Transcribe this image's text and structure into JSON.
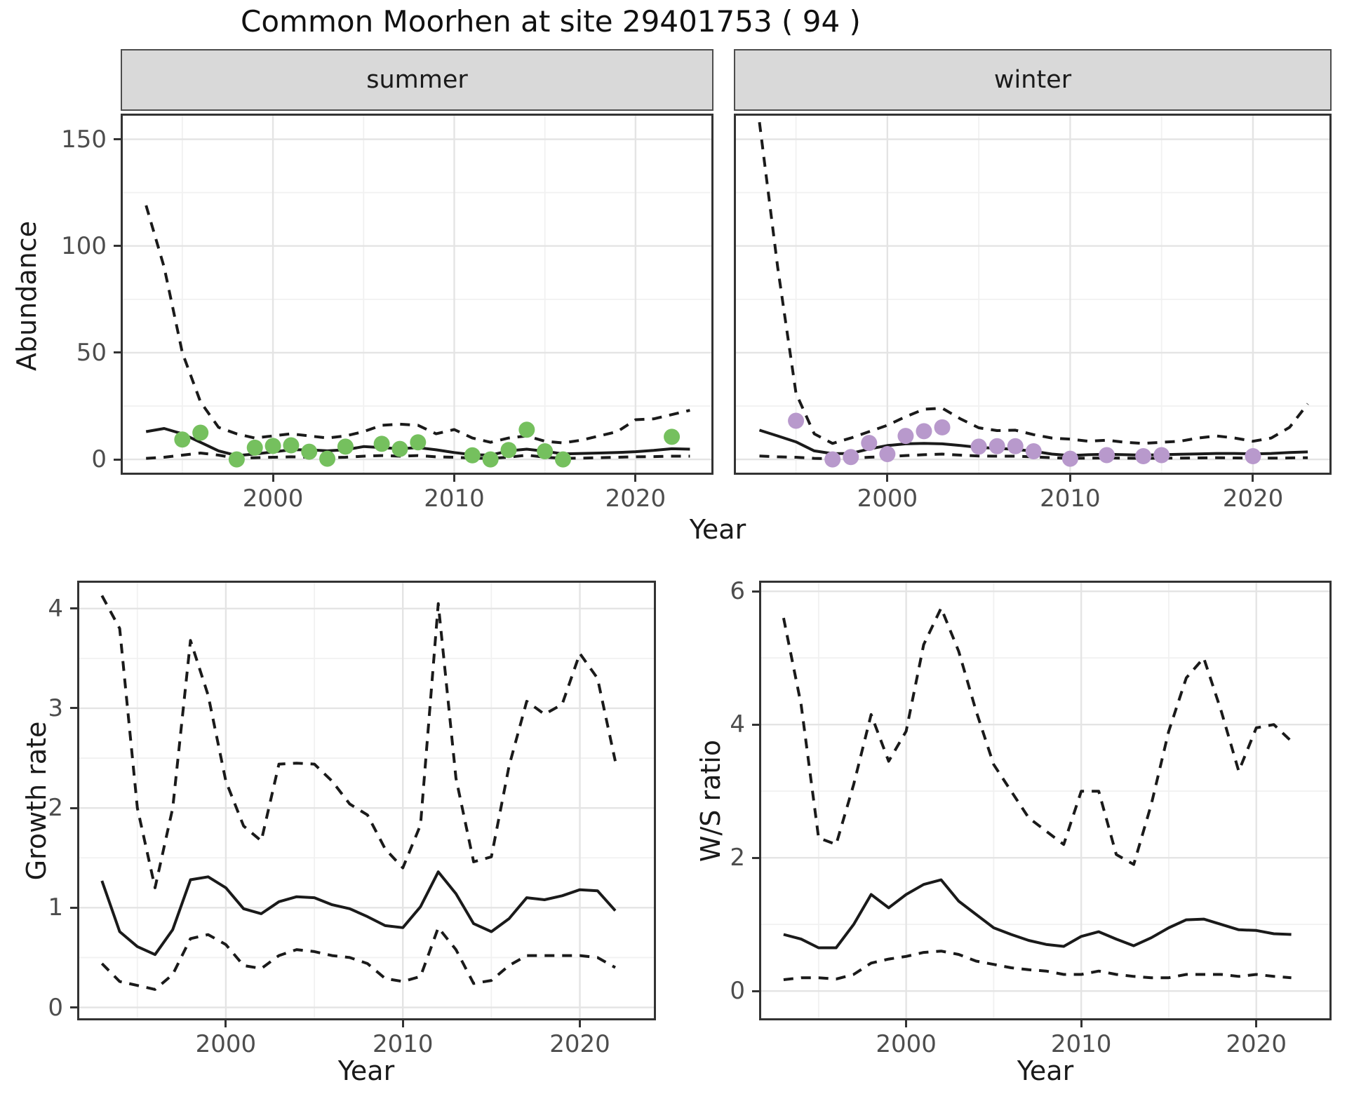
{
  "title": "Common Moorhen at site 29401753 ( 94 )",
  "top_row": {
    "ylabel": "Abundance",
    "xlabel": "Year",
    "facets": [
      "summer",
      "winter"
    ]
  },
  "bottom_row": {
    "panels": [
      {
        "ylabel": "Growth rate",
        "xlabel": "Year"
      },
      {
        "ylabel": "W/S ratio",
        "xlabel": "Year"
      }
    ]
  },
  "colors": {
    "summer_point": "#75c05e",
    "winter_point": "#b899cc",
    "line": "#1a1a1a",
    "panel_border": "#333333",
    "grid_major": "#e4e4e4",
    "grid_minor": "#f1f1f1",
    "strip_bg": "#d9d9d9",
    "tick_text": "#4d4d4d"
  },
  "chart_data": [
    {
      "type": "line",
      "facet": "summer",
      "xlabel": "Year",
      "ylabel": "Abundance",
      "xlim": [
        1991.6,
        2024.3
      ],
      "ylim": [
        -7.2,
        162
      ],
      "x_major": [
        2000,
        2010,
        2020
      ],
      "x_minor": [
        1995,
        2005,
        2015
      ],
      "x_tick_labels": [
        "2000",
        "2010",
        "2020"
      ],
      "y_major": [
        0,
        50,
        100,
        150
      ],
      "y_minor": [
        25,
        75,
        125
      ],
      "y_tick_labels": [
        "0",
        "50",
        "100",
        "150"
      ],
      "years": [
        1993,
        1994,
        1995,
        1996,
        1997,
        1998,
        1999,
        2000,
        2001,
        2002,
        2003,
        2004,
        2005,
        2006,
        2007,
        2008,
        2009,
        2010,
        2011,
        2012,
        2013,
        2014,
        2015,
        2016,
        2017,
        2018,
        2019,
        2020,
        2021,
        2022,
        2023
      ],
      "series": [
        {
          "name": "upper_ci",
          "style": "dashed",
          "values": [
            119,
            90,
            50,
            27,
            15,
            12,
            10,
            11,
            12,
            11,
            10,
            11,
            13,
            16,
            16.5,
            16,
            12,
            14,
            10,
            8,
            10,
            11,
            8.5,
            7.7,
            9,
            11,
            13,
            18.6,
            19,
            21,
            23
          ]
        },
        {
          "name": "median",
          "style": "solid",
          "values": [
            13,
            14.5,
            12,
            8,
            4,
            1.8,
            2.5,
            3.5,
            4.5,
            4.5,
            4,
            4.5,
            6,
            5.5,
            5,
            5.5,
            4.5,
            3.2,
            2.2,
            2,
            4,
            4.8,
            3.8,
            2.6,
            2.8,
            3,
            3.2,
            3.6,
            4.2,
            5,
            4.8
          ]
        },
        {
          "name": "lower_ci",
          "style": "dashed",
          "values": [
            0.5,
            1,
            2,
            3,
            2,
            0.5,
            0.8,
            1,
            1.2,
            1,
            0.8,
            1,
            1.5,
            1.8,
            1.5,
            1.8,
            1.2,
            1,
            0.6,
            0.5,
            1,
            2,
            1,
            0.5,
            0.6,
            0.8,
            1,
            1.2,
            1.3,
            1.5,
            1.5
          ]
        }
      ],
      "points": {
        "name": "observed-counts",
        "color": "#75c05e",
        "x": [
          1995,
          1996,
          1998,
          1999,
          2000,
          2001,
          2002,
          2003,
          2004,
          2006,
          2007,
          2008,
          2011,
          2012,
          2013,
          2014,
          2015,
          2016,
          2022
        ],
        "y": [
          9.3,
          12.5,
          0,
          5.5,
          6.3,
          6.6,
          3.6,
          0.3,
          6,
          7.3,
          4.9,
          8,
          1.9,
          0,
          4.4,
          13.9,
          3.8,
          0,
          10.6
        ]
      }
    },
    {
      "type": "line",
      "facet": "winter",
      "xlabel": "Year",
      "ylabel": "Abundance",
      "xlim": [
        1991.6,
        2024.3
      ],
      "ylim": [
        -7.2,
        162
      ],
      "x_major": [
        2000,
        2010,
        2020
      ],
      "x_minor": [
        1995,
        2005,
        2015
      ],
      "x_tick_labels": [
        "2000",
        "2010",
        "2020"
      ],
      "y_major": [
        0,
        50,
        100,
        150
      ],
      "y_minor": [
        25,
        75,
        125
      ],
      "y_tick_labels": null,
      "years": [
        1993,
        1994,
        1995,
        1996,
        1997,
        1998,
        1999,
        2000,
        2001,
        2002,
        2003,
        2004,
        2005,
        2006,
        2007,
        2008,
        2009,
        2010,
        2011,
        2012,
        2013,
        2014,
        2015,
        2016,
        2017,
        2018,
        2019,
        2020,
        2021,
        2022,
        2023
      ],
      "series": [
        {
          "name": "upper_ci",
          "style": "dashed",
          "values": [
            158,
            90,
            31,
            12,
            7.5,
            10,
            13,
            16,
            20,
            23.5,
            24,
            19,
            14.8,
            13.5,
            13.7,
            11.6,
            10,
            9.5,
            8.5,
            9,
            8,
            7.5,
            8,
            8.5,
            10,
            11,
            10,
            8.5,
            10,
            15,
            26
          ]
        },
        {
          "name": "median",
          "style": "solid",
          "values": [
            13.7,
            11,
            8.2,
            4,
            2.7,
            2.8,
            4.9,
            6.5,
            7.3,
            7.5,
            7.3,
            6.5,
            5.6,
            5.2,
            4.7,
            3.8,
            2.5,
            1.8,
            2.2,
            2.4,
            2.2,
            2,
            2.2,
            2.4,
            2.6,
            2.8,
            2.8,
            2.6,
            2.8,
            3.2,
            3.5
          ]
        },
        {
          "name": "lower_ci",
          "style": "dashed",
          "values": [
            1.6,
            1.2,
            1,
            0.5,
            0.3,
            0.5,
            1,
            1.3,
            1.8,
            2.2,
            2.5,
            2,
            1.6,
            1.5,
            1.5,
            1.2,
            0.8,
            0.5,
            0.6,
            0.7,
            0.6,
            0.5,
            0.6,
            0.6,
            0.7,
            0.8,
            0.7,
            0.6,
            0.6,
            0.7,
            0.8
          ]
        }
      ],
      "points": {
        "name": "observed-counts",
        "color": "#b899cc",
        "x": [
          1995,
          1997,
          1998,
          1999,
          2000,
          2001,
          2002,
          2003,
          2005,
          2006,
          2007,
          2008,
          2010,
          2012,
          2014,
          2015,
          2020
        ],
        "y": [
          18.1,
          0,
          1.1,
          7.7,
          2.5,
          11,
          13.2,
          15,
          6,
          6.2,
          6.2,
          3.8,
          0.3,
          2,
          1.5,
          2,
          1.5
        ]
      }
    },
    {
      "type": "line",
      "facet": null,
      "xlabel": "Year",
      "ylabel": "Growth rate",
      "xlim": [
        1991.6,
        2024.3
      ],
      "ylim": [
        -0.13,
        4.28
      ],
      "x_major": [
        2000,
        2010,
        2020
      ],
      "x_minor": [
        1995,
        2005,
        2015
      ],
      "x_tick_labels": [
        "2000",
        "2010",
        "2020"
      ],
      "y_major": [
        0,
        1,
        2,
        3,
        4
      ],
      "y_minor": [
        0.5,
        1.5,
        2.5,
        3.5
      ],
      "y_tick_labels": [
        "0",
        "1",
        "2",
        "3",
        "4"
      ],
      "years": [
        1993,
        1994,
        1995,
        1996,
        1997,
        1998,
        1999,
        2000,
        2001,
        2002,
        2003,
        2004,
        2005,
        2006,
        2007,
        2008,
        2009,
        2010,
        2011,
        2012,
        2013,
        2014,
        2015,
        2016,
        2017,
        2018,
        2019,
        2020,
        2021,
        2022
      ],
      "series": [
        {
          "name": "upper_ci",
          "style": "dashed",
          "values": [
            4.13,
            3.8,
            2.0,
            1.2,
            2.0,
            3.68,
            3.13,
            2.27,
            1.82,
            1.67,
            2.44,
            2.45,
            2.44,
            2.27,
            2.04,
            1.93,
            1.59,
            1.4,
            1.83,
            4.05,
            2.3,
            1.46,
            1.51,
            2.42,
            3.07,
            2.94,
            3.04,
            3.55,
            3.3,
            2.47
          ]
        },
        {
          "name": "median",
          "style": "solid",
          "values": [
            1.27,
            0.76,
            0.61,
            0.53,
            0.78,
            1.28,
            1.31,
            1.2,
            0.99,
            0.94,
            1.06,
            1.11,
            1.1,
            1.03,
            0.99,
            0.91,
            0.82,
            0.8,
            1.01,
            1.36,
            1.14,
            0.84,
            0.76,
            0.89,
            1.1,
            1.08,
            1.12,
            1.18,
            1.17,
            0.97
          ]
        },
        {
          "name": "lower_ci",
          "style": "dashed",
          "values": [
            0.44,
            0.26,
            0.22,
            0.18,
            0.33,
            0.69,
            0.73,
            0.63,
            0.42,
            0.39,
            0.52,
            0.58,
            0.56,
            0.52,
            0.5,
            0.44,
            0.29,
            0.26,
            0.31,
            0.8,
            0.58,
            0.24,
            0.27,
            0.42,
            0.52,
            0.52,
            0.52,
            0.52,
            0.5,
            0.4
          ]
        }
      ],
      "points": null
    },
    {
      "type": "line",
      "facet": null,
      "xlabel": "Year",
      "ylabel": "W/S ratio",
      "xlim": [
        1991.6,
        2024.3
      ],
      "ylim": [
        -0.44,
        6.16
      ],
      "x_major": [
        2000,
        2010,
        2020
      ],
      "x_minor": [
        1995,
        2005,
        2015
      ],
      "x_tick_labels": [
        "2000",
        "2010",
        "2020"
      ],
      "y_major": [
        0,
        2,
        4,
        6
      ],
      "y_minor": [
        1,
        3,
        5
      ],
      "y_tick_labels": [
        "0",
        "2",
        "4",
        "6"
      ],
      "years": [
        1993,
        1994,
        1995,
        1996,
        1997,
        1998,
        1999,
        2000,
        2001,
        2002,
        2003,
        2004,
        2005,
        2006,
        2007,
        2008,
        2009,
        2010,
        2011,
        2012,
        2013,
        2014,
        2015,
        2016,
        2017,
        2018,
        2019,
        2020,
        2021,
        2022
      ],
      "series": [
        {
          "name": "upper_ci",
          "style": "dashed",
          "values": [
            5.6,
            4.3,
            2.3,
            2.2,
            3.1,
            4.15,
            3.45,
            3.9,
            5.2,
            5.75,
            5.1,
            4.2,
            3.4,
            3.0,
            2.6,
            2.4,
            2.2,
            3.0,
            3.0,
            2.05,
            1.9,
            2.8,
            3.9,
            4.7,
            5.0,
            4.2,
            3.3,
            3.95,
            4.0,
            3.75
          ]
        },
        {
          "name": "median",
          "style": "solid",
          "values": [
            0.85,
            0.78,
            0.65,
            0.65,
            1.0,
            1.45,
            1.25,
            1.45,
            1.6,
            1.67,
            1.35,
            1.15,
            0.95,
            0.85,
            0.76,
            0.7,
            0.67,
            0.82,
            0.89,
            0.78,
            0.68,
            0.8,
            0.95,
            1.07,
            1.08,
            1.0,
            0.92,
            0.91,
            0.86,
            0.85
          ]
        },
        {
          "name": "lower_ci",
          "style": "dashed",
          "values": [
            0.17,
            0.2,
            0.2,
            0.18,
            0.25,
            0.42,
            0.48,
            0.52,
            0.58,
            0.6,
            0.55,
            0.45,
            0.4,
            0.35,
            0.32,
            0.3,
            0.25,
            0.25,
            0.3,
            0.25,
            0.22,
            0.2,
            0.2,
            0.25,
            0.25,
            0.25,
            0.22,
            0.25,
            0.22,
            0.2
          ]
        }
      ],
      "points": null
    }
  ]
}
